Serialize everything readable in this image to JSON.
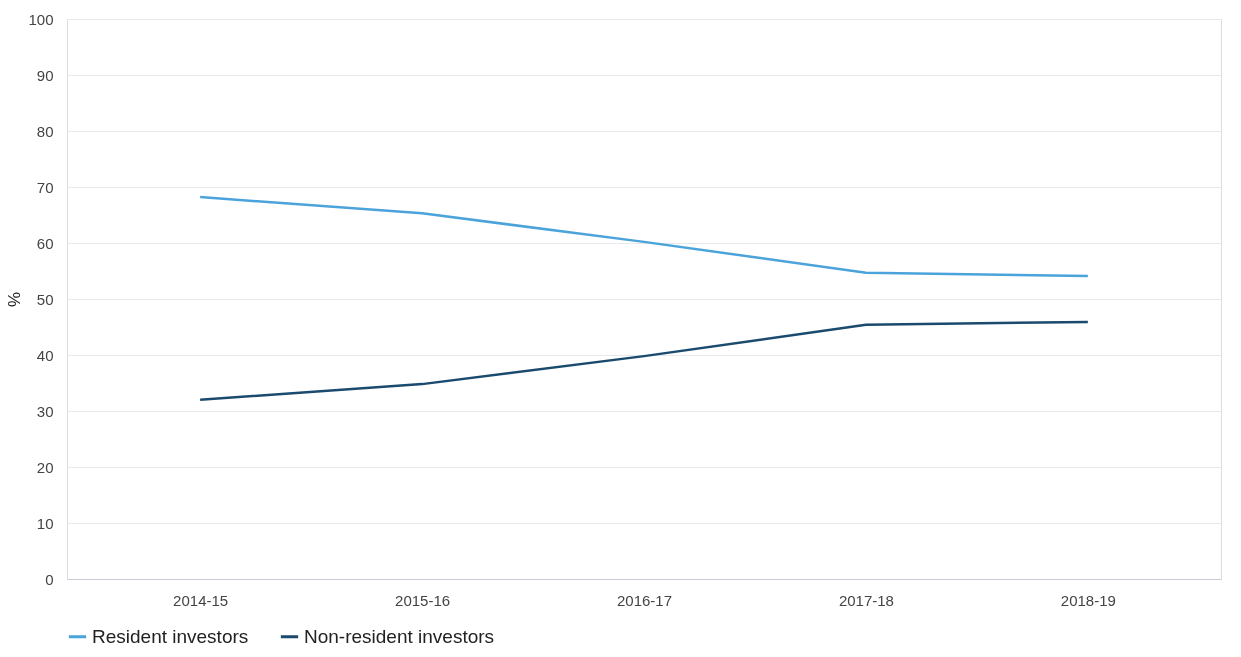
{
  "chart_data": {
    "type": "line",
    "ylabel": "%",
    "categories": [
      "2014-15",
      "2015-16",
      "2016-17",
      "2017-18",
      "2018-19"
    ],
    "series": [
      {
        "name": "Resident investors",
        "color": "#4ba3db",
        "values": [
          68.2,
          65.3,
          60.2,
          54.7,
          54.1
        ]
      },
      {
        "name": "Non-resident investors",
        "color": "#1a4a6e",
        "values": [
          32.0,
          34.8,
          39.8,
          45.4,
          45.9
        ]
      }
    ],
    "ylim": [
      0,
      100
    ],
    "yticks": [
      0,
      10,
      20,
      30,
      40,
      50,
      60,
      70,
      80,
      90,
      100
    ],
    "grid": "y",
    "legend": "bottom",
    "marker": "none",
    "line_style": "solid"
  }
}
